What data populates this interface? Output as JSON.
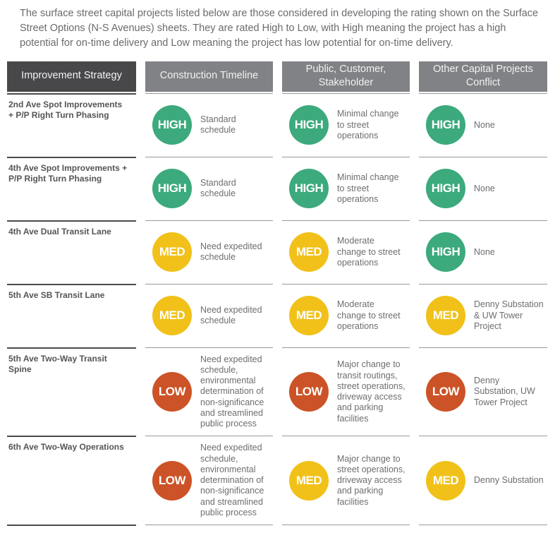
{
  "intro": "The surface street capital projects listed below are those considered in developing the rating shown on the Surface Street Options (N-S Avenues) sheets. They are rated High to Low, with High meaning the project has a high potential for on-time delivery and Low meaning the project has low potential for on-time delivery.",
  "columns": [
    {
      "label": "Improvement Strategy"
    },
    {
      "label": "Construction Timeline"
    },
    {
      "label": "Public, Customer, Stakeholder"
    },
    {
      "label": "Other Capital Projects Conflict"
    }
  ],
  "colors": {
    "high": "#3CAA7C",
    "med": "#F1C119",
    "low": "#CC5327",
    "header_dark": "#48484A",
    "header_gray": "#808285",
    "line_dark": "#4A4A4C",
    "line_gray": "#97999C"
  },
  "rows": [
    {
      "project": "2nd Ave Spot Improvements\n+ P/P Right Turn Phasing",
      "construction": {
        "rating": "HIGH",
        "text": "Standard\nschedule"
      },
      "stakeholder": {
        "rating": "HIGH",
        "text": "Minimal change\nto street\noperations"
      },
      "conflict": {
        "rating": "HIGH",
        "text": "None"
      }
    },
    {
      "project": "4th Ave Spot Improvements +\nP/P Right Turn Phasing",
      "construction": {
        "rating": "HIGH",
        "text": "Standard\nschedule"
      },
      "stakeholder": {
        "rating": "HIGH",
        "text": "Minimal change\nto street\noperations"
      },
      "conflict": {
        "rating": "HIGH",
        "text": "None"
      }
    },
    {
      "project": "4th Ave Dual Transit Lane",
      "construction": {
        "rating": "MED",
        "text": "Need expedited\nschedule"
      },
      "stakeholder": {
        "rating": "MED",
        "text": "Moderate\nchange to street\noperations"
      },
      "conflict": {
        "rating": "HIGH",
        "text": "None"
      }
    },
    {
      "project": "5th Ave SB Transit Lane",
      "construction": {
        "rating": "MED",
        "text": "Need expedited\nschedule"
      },
      "stakeholder": {
        "rating": "MED",
        "text": "Moderate\nchange to street\noperations"
      },
      "conflict": {
        "rating": "MED",
        "text": "Denny Substation\n& UW Tower\nProject"
      }
    },
    {
      "project": "5th Ave Two-Way Transit\nSpine",
      "construction": {
        "rating": "LOW",
        "text": "Need expedited\nschedule,\nenvironmental\ndetermination of\nnon-significance\nand streamlined\npublic process"
      },
      "stakeholder": {
        "rating": "LOW",
        "text": "Major change to\ntransit routings,\nstreet operations,\ndriveway access\nand parking\nfacilities"
      },
      "conflict": {
        "rating": "LOW",
        "text": "Denny\nSubstation, UW\nTower Project"
      }
    },
    {
      "project": "6th Ave Two-Way Operations",
      "construction": {
        "rating": "LOW",
        "text": "Need expedited\nschedule,\nenvironmental\ndetermination of\nnon-significance\nand streamlined\npublic process"
      },
      "stakeholder": {
        "rating": "MED",
        "text": "Major change to\nstreet operations,\ndriveway access\nand parking\nfacilities"
      },
      "conflict": {
        "rating": "MED",
        "text": "Denny Substation"
      }
    }
  ]
}
